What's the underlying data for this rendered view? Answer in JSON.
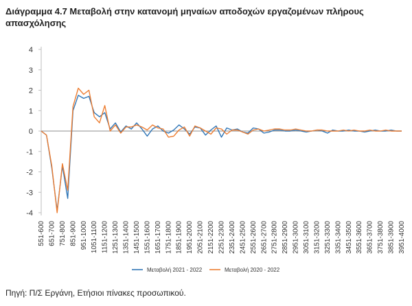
{
  "title": "Διάγραμμα 4.7 Μεταβολή στην κατανομή μηναίων αποδοχών εργαζομένων πλήρους απασχόλησης",
  "source": "Πηγή: Π/Σ Εργάνη, Ετήσιοι πίνακες προσωπικού.",
  "chart_data": {
    "type": "line",
    "categories": [
      "551-600",
      "601-650",
      "651-700",
      "701-750",
      "751-800",
      "801-850",
      "851-900",
      "901-950",
      "951-1000",
      "1001-1050",
      "1051-1100",
      "1101-1150",
      "1151-1200",
      "1201-1250",
      "1251-1300",
      "1301-1350",
      "1351-1400",
      "1401-1450",
      "1451-1500",
      "1501-1550",
      "1551-1600",
      "1601-1650",
      "1651-1700",
      "1701-1750",
      "1751-1800",
      "1801-1850",
      "1851-1900",
      "1901-1950",
      "1951-2000",
      "2001-2050",
      "2051-2100",
      "2101-2150",
      "2151-2200",
      "2201-2250",
      "2251-2300",
      "2301-2350",
      "2351-2400",
      "2401-2450",
      "2451-2500",
      "2501-2550",
      "2551-2600",
      "2601-2650",
      "2651-2700",
      "2701-2750",
      "2751-2800",
      "2801-2850",
      "2851-2900",
      "2901-2950",
      "2951-3000",
      "3001-3050",
      "3051-3100",
      "3101-3150",
      "3151-3200",
      "3201-3250",
      "3251-3300",
      "3301-3350",
      "3351-3400",
      "3401-3450",
      "3451-3500",
      "3501-3550",
      "3551-3600",
      "3601-3650",
      "3651-3700",
      "3701-3750",
      "3751-3800",
      "3801-3850",
      "3851-3900",
      "3901-3950",
      "3951-4000"
    ],
    "tick_labels": [
      "551-600",
      "651-700",
      "751-800",
      "851-900",
      "951-1000",
      "1051-1100",
      "1151-1200",
      "1251-1300",
      "1351-1400",
      "1451-1500",
      "1551-1600",
      "1651-1700",
      "1751-1800",
      "1851-1900",
      "1951-2000",
      "2051-2100",
      "2151-2200",
      "2251-2300",
      "2351-2400",
      "2451-2500",
      "2551-2600",
      "2651-2700",
      "2751-2800",
      "2851-2900",
      "2951-3000",
      "3051-3100",
      "3151-3200",
      "3251-3300",
      "3351-3400",
      "3451-3500",
      "3551-3600",
      "3651-3700",
      "3751-3800",
      "3851-3900",
      "3951-4000"
    ],
    "series": [
      {
        "name": "Μεταβολή 2021 - 2022",
        "color": "#2e75b6",
        "values": [
          0,
          -0.2,
          -1.8,
          -3.9,
          -1.7,
          -3.3,
          1.0,
          1.75,
          1.6,
          1.7,
          0.9,
          0.7,
          0.9,
          0.1,
          0.4,
          -0.05,
          0.25,
          0.1,
          0.4,
          0.1,
          -0.25,
          0.1,
          0.25,
          0.0,
          -0.1,
          0.05,
          0.3,
          0.1,
          -0.15,
          0.2,
          0.15,
          -0.2,
          0.05,
          0.25,
          -0.3,
          0.15,
          0.05,
          0.1,
          -0.05,
          -0.1,
          0.15,
          0.1,
          -0.1,
          -0.05,
          0.05,
          0.05,
          0.0,
          0.0,
          0.05,
          0.0,
          -0.05,
          0.0,
          0.05,
          0.0,
          -0.1,
          0.05,
          0.0,
          0.0,
          0.05,
          0.0,
          0.0,
          -0.05,
          0.0,
          0.05,
          0.0,
          0.0,
          0.05,
          0.0,
          0.0
        ]
      },
      {
        "name": "Μεταβολή 2020 - 2022",
        "color": "#ed7d31",
        "values": [
          0,
          -0.2,
          -1.7,
          -4.0,
          -1.6,
          -2.9,
          1.2,
          2.1,
          1.8,
          2.0,
          0.7,
          0.4,
          1.25,
          0.0,
          0.3,
          -0.1,
          0.2,
          0.2,
          0.3,
          0.2,
          0.05,
          0.3,
          0.15,
          0.1,
          -0.3,
          -0.25,
          0.05,
          0.2,
          -0.25,
          0.25,
          0.15,
          0.0,
          -0.15,
          0.15,
          0.1,
          -0.15,
          0.05,
          0.05,
          -0.05,
          -0.15,
          0.05,
          0.1,
          0.0,
          0.05,
          0.1,
          0.1,
          0.05,
          0.05,
          0.1,
          0.05,
          0.0,
          0.0,
          0.05,
          0.05,
          0.0,
          0.0,
          0.0,
          0.05,
          0.0,
          0.05,
          0.0,
          0.0,
          0.05,
          0.0,
          0.0,
          0.05,
          0.0,
          0.0,
          0.0
        ]
      }
    ],
    "ylim": [
      -4,
      4
    ],
    "yticks": [
      -4,
      -3,
      -2,
      -1,
      0,
      1,
      2,
      3,
      4
    ],
    "grid": false,
    "legend": "bottom-center"
  }
}
